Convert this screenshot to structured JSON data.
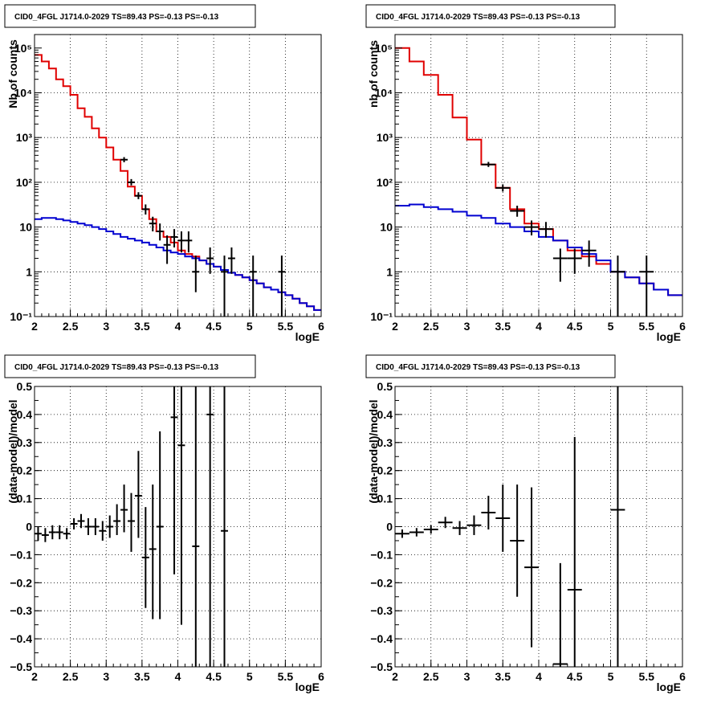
{
  "chart_data": [
    {
      "type": "histogram",
      "title": "CID0_4FGL J1714.0-2029 TS=89.43 PS=-0.13 PS=-0.13",
      "xlabel": "logE",
      "ylabel": "Nb of counts",
      "xlim": [
        2,
        6
      ],
      "ylim": [
        0.1,
        200000
      ],
      "yscale": "log",
      "grid": true,
      "x_ticks": [
        "2",
        "2.5",
        "3",
        "3.5",
        "4",
        "4.5",
        "5",
        "5.5",
        "6"
      ],
      "y_ticks": [
        "10⁻¹",
        "1",
        "10",
        "10²",
        "10³",
        "10⁴",
        "10⁵"
      ],
      "x_edges": [
        2.0,
        2.1,
        2.2,
        2.3,
        2.4,
        2.5,
        2.6,
        2.7,
        2.8,
        2.9,
        3.0,
        3.1,
        3.2,
        3.3,
        3.4,
        3.5,
        3.6,
        3.7,
        3.8,
        3.9,
        4.0,
        4.1,
        4.2,
        4.3,
        4.4,
        4.5,
        4.6,
        4.7,
        4.8,
        4.9,
        5.0,
        5.1,
        5.2,
        5.3,
        5.4,
        5.5,
        5.6,
        5.7,
        5.8,
        5.9,
        6.0
      ],
      "series": [
        {
          "color": "#e00000",
          "values": [
            70000,
            50000,
            35000,
            20000,
            14000,
            9000,
            4500,
            2900,
            1600,
            1000,
            600,
            320,
            180,
            80,
            50,
            25,
            15,
            8,
            6,
            4.5,
            3,
            2.5,
            2.2,
            1.8,
            1.5,
            1.3,
            1.1,
            0.95,
            0.85,
            0.75,
            0.65,
            0.55,
            0.45,
            0.4,
            0.35,
            0.3,
            0.25,
            0.2,
            0.17,
            0.14
          ]
        },
        {
          "color": "#0000d0",
          "values": [
            15,
            16,
            16,
            15,
            14,
            13,
            12,
            11,
            10,
            9,
            8,
            7,
            6,
            5.5,
            5,
            4.5,
            4,
            3.5,
            3,
            2.7,
            2.5,
            2.2,
            2,
            1.8,
            1.5,
            1.3,
            1.1,
            0.95,
            0.85,
            0.75,
            0.65,
            0.55,
            0.45,
            0.4,
            0.35,
            0.3,
            0.25,
            0.2,
            0.17,
            0.14
          ]
        }
      ],
      "data_points": [
        {
          "x": 3.25,
          "y": 320,
          "ylo": 280,
          "yhi": 365
        },
        {
          "x": 3.35,
          "y": 100,
          "ylo": 85,
          "yhi": 118
        },
        {
          "x": 3.45,
          "y": 50,
          "ylo": 42,
          "yhi": 60
        },
        {
          "x": 3.55,
          "y": 25,
          "ylo": 19,
          "yhi": 32
        },
        {
          "x": 3.65,
          "y": 12,
          "ylo": 8,
          "yhi": 17
        },
        {
          "x": 3.75,
          "y": 8,
          "ylo": 5,
          "yhi": 12
        },
        {
          "x": 3.85,
          "y": 4,
          "ylo": 1.5,
          "yhi": 6.5
        },
        {
          "x": 3.95,
          "y": 6,
          "ylo": 3.5,
          "yhi": 9
        },
        {
          "x": 4.05,
          "y": 5,
          "ylo": 2.7,
          "yhi": 8
        },
        {
          "x": 4.15,
          "y": 5,
          "ylo": 2.7,
          "yhi": 8
        },
        {
          "x": 4.25,
          "y": 1,
          "ylo": 0.35,
          "yhi": 2.3
        },
        {
          "x": 4.45,
          "y": 2,
          "ylo": 0.9,
          "yhi": 3.5
        },
        {
          "x": 4.65,
          "y": 1,
          "ylo": 0.1,
          "yhi": 2.3
        },
        {
          "x": 4.75,
          "y": 2,
          "ylo": 0.9,
          "yhi": 3.5
        },
        {
          "x": 5.05,
          "y": 1,
          "ylo": 0.1,
          "yhi": 2.3
        },
        {
          "x": 5.45,
          "y": 1,
          "ylo": 0.1,
          "yhi": 2.3
        }
      ]
    },
    {
      "type": "histogram",
      "title": "CID0_4FGL J1714.0-2029 TS=89.43 PS=-0.13 PS=-0.13",
      "xlabel": "logE",
      "ylabel": "nb of counts",
      "xlim": [
        2,
        6
      ],
      "ylim": [
        0.1,
        200000
      ],
      "yscale": "log",
      "grid": true,
      "x_ticks": [
        "2",
        "2.5",
        "3",
        "3.5",
        "4",
        "4.5",
        "5",
        "5.5",
        "6"
      ],
      "y_ticks": [
        "10⁻¹",
        "1",
        "10",
        "10²",
        "10³",
        "10⁴",
        "10⁵"
      ],
      "x_edges": [
        2.0,
        2.2,
        2.4,
        2.6,
        2.8,
        3.0,
        3.2,
        3.4,
        3.6,
        3.8,
        4.0,
        4.2,
        4.4,
        4.6,
        4.8,
        5.0,
        5.2,
        5.4,
        5.6,
        5.8,
        6.0
      ],
      "series": [
        {
          "color": "#e00000",
          "values": [
            100000,
            50000,
            25000,
            9000,
            2800,
            900,
            250,
            75,
            25,
            12,
            9,
            5,
            3,
            2.2,
            1.5,
            1.0,
            0.75,
            0.55,
            0.4,
            0.3
          ]
        },
        {
          "color": "#0000d0",
          "values": [
            30,
            32,
            28,
            25,
            22,
            18,
            16,
            12,
            10,
            8,
            6,
            5,
            3.5,
            2.5,
            1.8,
            1.0,
            0.75,
            0.55,
            0.4,
            0.3
          ]
        }
      ],
      "data_points": [
        {
          "x": 3.3,
          "y": 250,
          "ylo": 220,
          "yhi": 285
        },
        {
          "x": 3.5,
          "y": 75,
          "ylo": 62,
          "yhi": 90
        },
        {
          "x": 3.7,
          "y": 23,
          "ylo": 17,
          "yhi": 30
        },
        {
          "x": 3.9,
          "y": 10,
          "ylo": 6.5,
          "yhi": 14
        },
        {
          "x": 4.1,
          "y": 9,
          "ylo": 5.8,
          "yhi": 13
        },
        {
          "x": 4.3,
          "y": 2,
          "ylo": 0.6,
          "yhi": 3.3
        },
        {
          "x": 4.5,
          "y": 2,
          "ylo": 0.9,
          "yhi": 3.3
        },
        {
          "x": 4.7,
          "y": 3,
          "ylo": 1.3,
          "yhi": 5
        },
        {
          "x": 5.1,
          "y": 1,
          "ylo": 0.1,
          "yhi": 2.3
        },
        {
          "x": 5.5,
          "y": 1,
          "ylo": 0.1,
          "yhi": 2.3
        }
      ]
    },
    {
      "type": "scatter",
      "title": "CID0_4FGL J1714.0-2029 TS=89.43 PS=-0.13 PS=-0.13",
      "xlabel": "logE",
      "ylabel": "(data-model)/model",
      "xlim": [
        2,
        6
      ],
      "ylim": [
        -0.5,
        0.5
      ],
      "grid": true,
      "x_ticks": [
        "2",
        "2.5",
        "3",
        "3.5",
        "4",
        "4.5",
        "5",
        "5.5",
        "6"
      ],
      "y_ticks": [
        "−0.5",
        "−0.4",
        "−0.3",
        "−0.2",
        "−0.1",
        "0",
        "0.1",
        "0.2",
        "0.3",
        "0.4",
        "0.5"
      ],
      "xerr": 0.05,
      "points": [
        {
          "x": 2.05,
          "y": -0.025,
          "ylo": -0.05,
          "yhi": 0.0
        },
        {
          "x": 2.15,
          "y": -0.03,
          "ylo": -0.055,
          "yhi": -0.005
        },
        {
          "x": 2.25,
          "y": -0.02,
          "ylo": -0.045,
          "yhi": 0.005
        },
        {
          "x": 2.35,
          "y": -0.02,
          "ylo": -0.045,
          "yhi": 0.005
        },
        {
          "x": 2.45,
          "y": -0.025,
          "ylo": -0.045,
          "yhi": -0.005
        },
        {
          "x": 2.55,
          "y": 0.01,
          "ylo": -0.01,
          "yhi": 0.03
        },
        {
          "x": 2.65,
          "y": 0.02,
          "ylo": -0.005,
          "yhi": 0.045
        },
        {
          "x": 2.75,
          "y": 0.0,
          "ylo": -0.03,
          "yhi": 0.03
        },
        {
          "x": 2.85,
          "y": 0.0,
          "ylo": -0.03,
          "yhi": 0.03
        },
        {
          "x": 2.95,
          "y": -0.015,
          "ylo": -0.05,
          "yhi": 0.02
        },
        {
          "x": 3.05,
          "y": 0.0,
          "ylo": -0.04,
          "yhi": 0.04
        },
        {
          "x": 3.15,
          "y": 0.02,
          "ylo": -0.03,
          "yhi": 0.08
        },
        {
          "x": 3.25,
          "y": 0.06,
          "ylo": -0.02,
          "yhi": 0.15
        },
        {
          "x": 3.35,
          "y": 0.02,
          "ylo": -0.09,
          "yhi": 0.12
        },
        {
          "x": 3.45,
          "y": 0.11,
          "ylo": -0.04,
          "yhi": 0.27
        },
        {
          "x": 3.55,
          "y": -0.11,
          "ylo": -0.29,
          "yhi": 0.07
        },
        {
          "x": 3.65,
          "y": -0.08,
          "ylo": -0.33,
          "yhi": 0.15
        },
        {
          "x": 3.75,
          "y": 0.0,
          "ylo": -0.33,
          "yhi": 0.34
        },
        {
          "x": 3.95,
          "y": 0.39,
          "ylo": -0.17,
          "yhi": 0.5
        },
        {
          "x": 4.05,
          "y": 0.29,
          "ylo": -0.35,
          "yhi": 0.5
        },
        {
          "x": 4.25,
          "y": -0.07,
          "ylo": -0.5,
          "yhi": 0.5
        },
        {
          "x": 4.45,
          "y": 0.4,
          "ylo": -0.5,
          "yhi": 0.5
        },
        {
          "x": 4.65,
          "y": -0.015,
          "ylo": -0.5,
          "yhi": 0.5
        }
      ]
    },
    {
      "type": "scatter",
      "title": "CID0_4FGL J1714.0-2029 TS=89.43 PS=-0.13 PS=-0.13",
      "xlabel": "logE",
      "ylabel": "(data-model)/model",
      "xlim": [
        2,
        6
      ],
      "ylim": [
        -0.5,
        0.5
      ],
      "grid": true,
      "x_ticks": [
        "2",
        "2.5",
        "3",
        "3.5",
        "4",
        "4.5",
        "5",
        "5.5",
        "6"
      ],
      "y_ticks": [
        "−0.5",
        "−0.4",
        "−0.3",
        "−0.2",
        "−0.1",
        "0",
        "0.1",
        "0.2",
        "0.3",
        "0.4",
        "0.5"
      ],
      "xerr": 0.1,
      "points": [
        {
          "x": 2.1,
          "y": -0.025,
          "ylo": -0.04,
          "yhi": -0.01
        },
        {
          "x": 2.3,
          "y": -0.02,
          "ylo": -0.035,
          "yhi": -0.005
        },
        {
          "x": 2.5,
          "y": -0.01,
          "ylo": -0.025,
          "yhi": 0.005
        },
        {
          "x": 2.7,
          "y": 0.015,
          "ylo": -0.005,
          "yhi": 0.035
        },
        {
          "x": 2.9,
          "y": -0.005,
          "ylo": -0.03,
          "yhi": 0.02
        },
        {
          "x": 3.1,
          "y": 0.005,
          "ylo": -0.03,
          "yhi": 0.04
        },
        {
          "x": 3.3,
          "y": 0.05,
          "ylo": -0.01,
          "yhi": 0.11
        },
        {
          "x": 3.5,
          "y": 0.03,
          "ylo": -0.09,
          "yhi": 0.15
        },
        {
          "x": 3.7,
          "y": -0.05,
          "ylo": -0.25,
          "yhi": 0.15
        },
        {
          "x": 3.9,
          "y": -0.145,
          "ylo": -0.43,
          "yhi": 0.14
        },
        {
          "x": 4.3,
          "y": -0.49,
          "ylo": -0.5,
          "yhi": -0.13
        },
        {
          "x": 4.5,
          "y": -0.225,
          "ylo": -0.5,
          "yhi": 0.32
        },
        {
          "x": 5.1,
          "y": 0.06,
          "ylo": -0.5,
          "yhi": 0.5
        }
      ]
    }
  ]
}
